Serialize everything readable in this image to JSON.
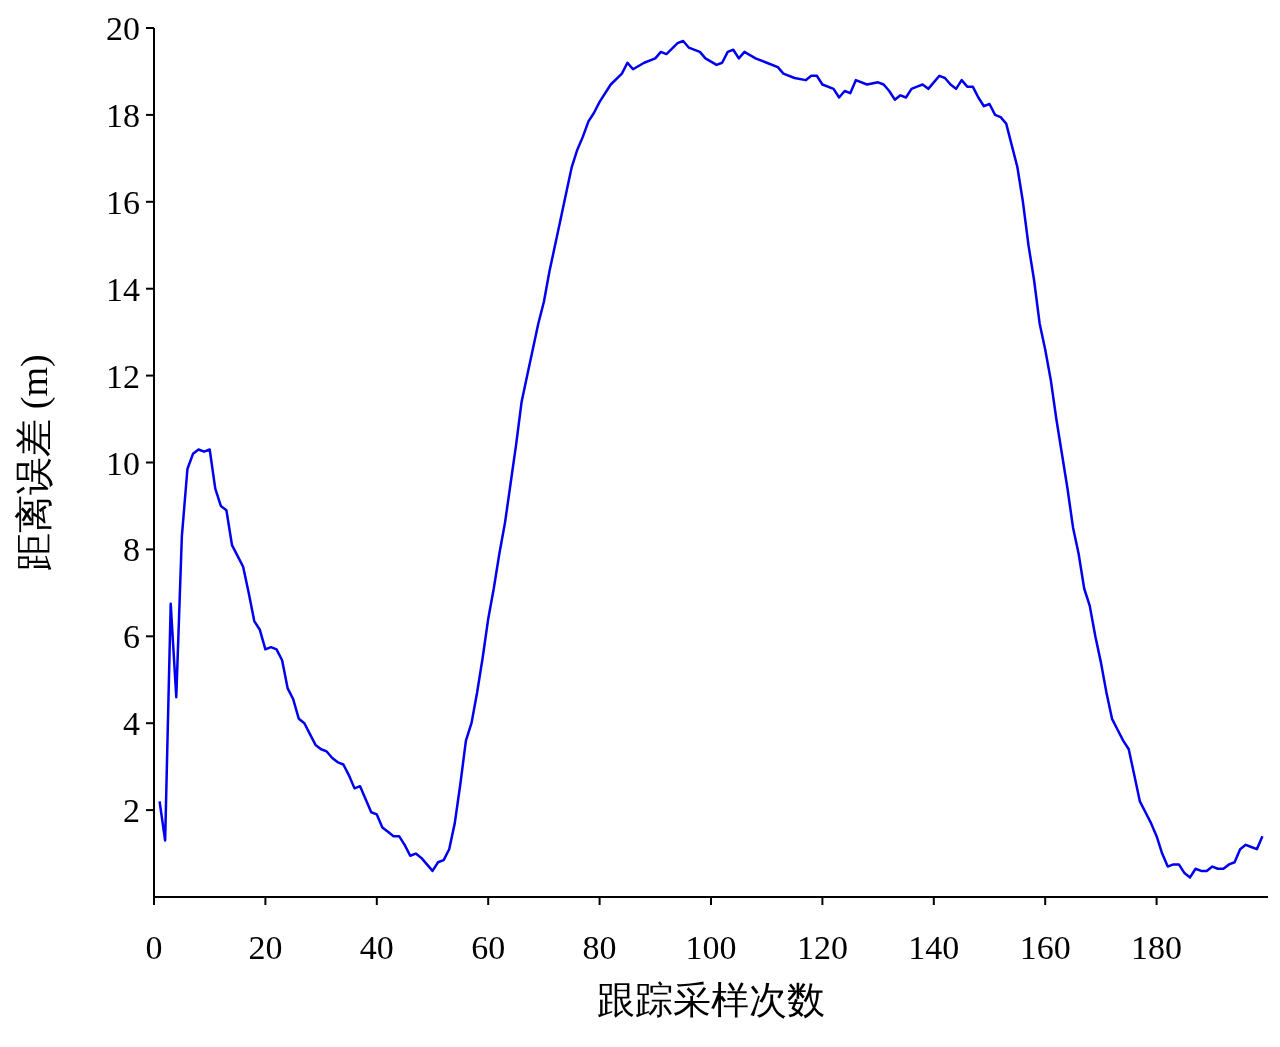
{
  "chart_data": {
    "type": "line",
    "xlabel": "跟踪采样次数",
    "ylabel": "距离误差 (m)",
    "xlim": [
      0,
      200
    ],
    "xticks": [
      0,
      20,
      40,
      60,
      80,
      100,
      120,
      140,
      160,
      180
    ],
    "ylim": [
      0,
      20
    ],
    "yticks": [
      2,
      4,
      6,
      8,
      10,
      12,
      14,
      16,
      18,
      20
    ],
    "grid": false,
    "legend": false,
    "marker": "none",
    "line_style": "solid",
    "x": [
      1,
      2,
      3,
      4,
      5,
      6,
      7,
      8,
      9,
      10,
      11,
      12,
      13,
      14,
      15,
      16,
      17,
      18,
      19,
      20,
      21,
      22,
      23,
      24,
      25,
      26,
      27,
      28,
      29,
      30,
      31,
      32,
      33,
      34,
      35,
      36,
      37,
      38,
      39,
      40,
      41,
      42,
      43,
      44,
      45,
      46,
      47,
      48,
      49,
      50,
      51,
      52,
      53,
      54,
      55,
      56,
      57,
      58,
      59,
      60,
      61,
      62,
      63,
      64,
      65,
      66,
      67,
      68,
      69,
      70,
      71,
      72,
      73,
      74,
      75,
      76,
      77,
      78,
      79,
      80,
      82,
      84,
      85,
      86,
      88,
      90,
      91,
      92,
      94,
      95,
      96,
      98,
      99,
      101,
      102,
      103,
      104,
      105,
      106,
      108,
      110,
      112,
      113,
      115,
      117,
      118,
      119,
      120,
      122,
      123,
      124,
      125,
      126,
      128,
      130,
      131,
      132,
      133,
      134,
      135,
      136,
      137,
      138,
      139,
      140,
      141,
      142,
      143,
      144,
      145,
      146,
      147,
      148,
      149,
      150,
      151,
      152,
      153,
      154,
      155,
      156,
      157,
      158,
      159,
      160,
      161,
      162,
      163,
      164,
      165,
      166,
      167,
      168,
      169,
      170,
      171,
      172,
      173,
      174,
      175,
      176,
      177,
      178,
      179,
      180,
      181,
      182,
      183,
      184,
      185,
      186,
      187,
      188,
      189,
      190,
      191,
      192,
      193,
      194,
      195,
      196,
      197,
      198,
      199
    ],
    "series": [
      {
        "color": "#0000ee",
        "values": [
          2.2,
          1.3,
          6.75,
          4.6,
          8.3,
          9.85,
          10.2,
          10.3,
          10.25,
          10.3,
          9.4,
          9.0,
          8.9,
          8.1,
          7.85,
          7.6,
          7.0,
          6.35,
          6.15,
          5.7,
          5.75,
          5.7,
          5.45,
          4.8,
          4.55,
          4.1,
          4.0,
          3.75,
          3.5,
          3.4,
          3.35,
          3.2,
          3.1,
          3.05,
          2.8,
          2.5,
          2.55,
          2.25,
          1.95,
          1.9,
          1.6,
          1.5,
          1.4,
          1.4,
          1.2,
          0.95,
          1.0,
          0.9,
          0.75,
          0.6,
          0.8,
          0.85,
          1.1,
          1.7,
          2.6,
          3.6,
          4.0,
          4.7,
          5.5,
          6.4,
          7.1,
          7.9,
          8.6,
          9.5,
          10.4,
          11.4,
          12.0,
          12.6,
          13.2,
          13.7,
          14.4,
          15.0,
          15.6,
          16.2,
          16.8,
          17.2,
          17.5,
          17.85,
          18.05,
          18.3,
          18.7,
          18.95,
          19.2,
          19.05,
          19.2,
          19.3,
          19.45,
          19.4,
          19.65,
          19.7,
          19.55,
          19.45,
          19.3,
          19.15,
          19.2,
          19.45,
          19.5,
          19.3,
          19.45,
          19.3,
          19.2,
          19.1,
          18.95,
          18.85,
          18.8,
          18.9,
          18.9,
          18.7,
          18.6,
          18.4,
          18.55,
          18.5,
          18.8,
          18.7,
          18.75,
          18.7,
          18.55,
          18.35,
          18.45,
          18.4,
          18.6,
          18.65,
          18.7,
          18.6,
          18.75,
          18.9,
          18.85,
          18.7,
          18.6,
          18.8,
          18.65,
          18.65,
          18.4,
          18.2,
          18.25,
          18.0,
          17.95,
          17.8,
          17.3,
          16.8,
          16.0,
          15.0,
          14.2,
          13.2,
          12.6,
          11.9,
          11.0,
          10.2,
          9.4,
          8.5,
          7.9,
          7.1,
          6.7,
          6.0,
          5.4,
          4.7,
          4.1,
          3.85,
          3.6,
          3.4,
          2.8,
          2.2,
          1.95,
          1.7,
          1.4,
          1.0,
          0.7,
          0.75,
          0.75,
          0.55,
          0.45,
          0.65,
          0.6,
          0.6,
          0.7,
          0.65,
          0.65,
          0.75,
          0.8,
          1.1,
          1.2,
          1.15,
          1.1,
          1.4
        ]
      }
    ]
  }
}
